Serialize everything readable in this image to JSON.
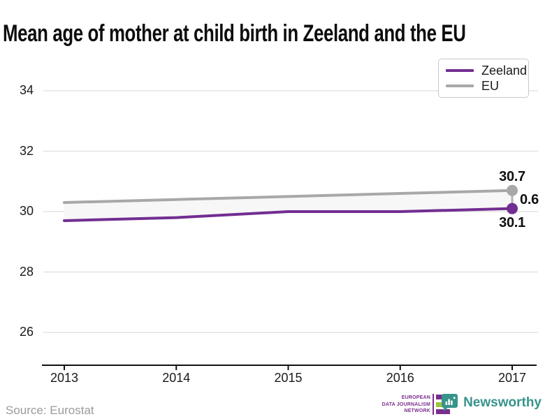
{
  "title": "Mean age of mother at child birth in Zeeland and the EU",
  "source_note": "Source: Eurostat",
  "legend": {
    "position": "top-right",
    "items": [
      {
        "label": "Zeeland",
        "color": "#722e91"
      },
      {
        "label": "EU",
        "color": "#a8a8a8"
      }
    ]
  },
  "chart_data": {
    "type": "line",
    "title": "Mean age of mother at child birth in Zeeland and the EU",
    "x": [
      2013,
      2014,
      2015,
      2016,
      2017
    ],
    "series": [
      {
        "name": "Zeeland",
        "color": "#722e91",
        "values": [
          29.7,
          29.8,
          30.0,
          30.0,
          30.1
        ]
      },
      {
        "name": "EU",
        "color": "#a8a8a8",
        "values": [
          30.3,
          30.4,
          30.5,
          30.6,
          30.7
        ]
      }
    ],
    "yticks": [
      26,
      28,
      30,
      32,
      34
    ],
    "ylim": [
      25,
      35
    ],
    "xlabel": "",
    "ylabel": "",
    "grid": true,
    "band_fill_between_series": "#f7f7f7",
    "legend_position": "top-right",
    "annotations": [
      {
        "text": "30.7",
        "role": "eu-2017-value"
      },
      {
        "text": "0.6",
        "role": "difference-2017"
      },
      {
        "text": "30.1",
        "role": "zeeland-2017-value"
      }
    ]
  },
  "footer": {
    "edjn": {
      "lines": [
        "EUROPEAN",
        "DATA JOURNALISM",
        "NETWORK"
      ],
      "purple": "#7b2d8e",
      "green": "#9bc53d"
    },
    "newsworthy": {
      "name": "Newsworthy",
      "teal": "#37948b"
    }
  }
}
